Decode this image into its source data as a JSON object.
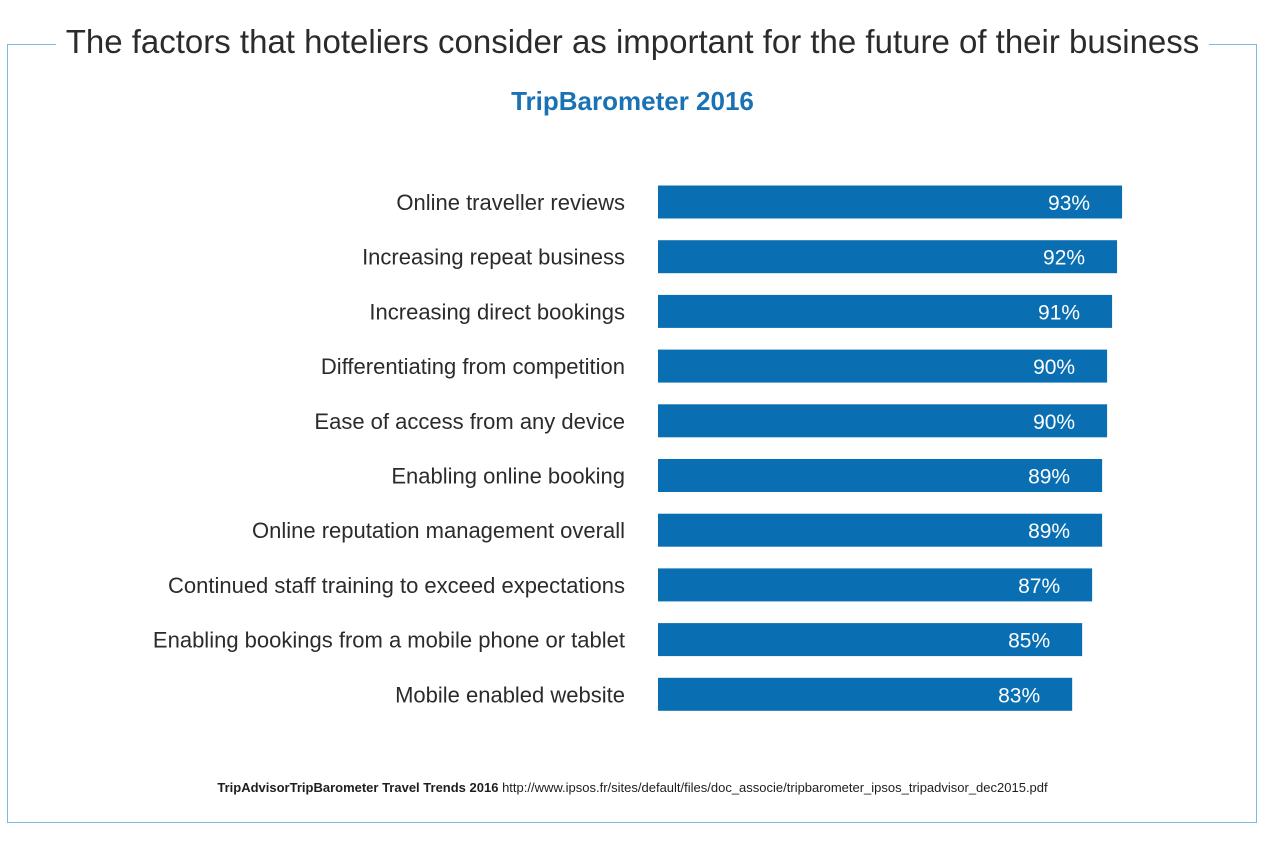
{
  "title": "The factors that hoteliers consider as important for the future of their business",
  "subtitle": "TripBarometer 2016",
  "source": {
    "label": "TripAdvisorTripBarometer Travel Trends 2016",
    "url": "http://www.ipsos.fr/sites/default/files/doc_associe/tripbarometer_ipsos_tripadvisor_dec2015.pdf"
  },
  "colors": {
    "bar": "#0a6fb2",
    "subtitle": "#1a72b4",
    "frame": "#7db8e0"
  },
  "chart_data": {
    "type": "bar",
    "orientation": "horizontal",
    "categories": [
      "Online traveller reviews",
      "Increasing repeat business",
      "Increasing direct bookings",
      "Differentiating from competition",
      "Ease of access from any device",
      "Enabling online booking",
      "Online reputation management overall",
      "Continued staff training to exceed expectations",
      "Enabling bookings from a mobile phone or tablet",
      "Mobile enabled website"
    ],
    "values": [
      93,
      92,
      91,
      90,
      90,
      89,
      89,
      87,
      85,
      83
    ],
    "value_labels": [
      "93%",
      "92%",
      "91%",
      "90%",
      "90%",
      "89%",
      "89%",
      "87%",
      "85%",
      "83%"
    ],
    "unit": "%",
    "xlim": [
      0,
      100
    ],
    "grid": false,
    "legend": "none"
  }
}
